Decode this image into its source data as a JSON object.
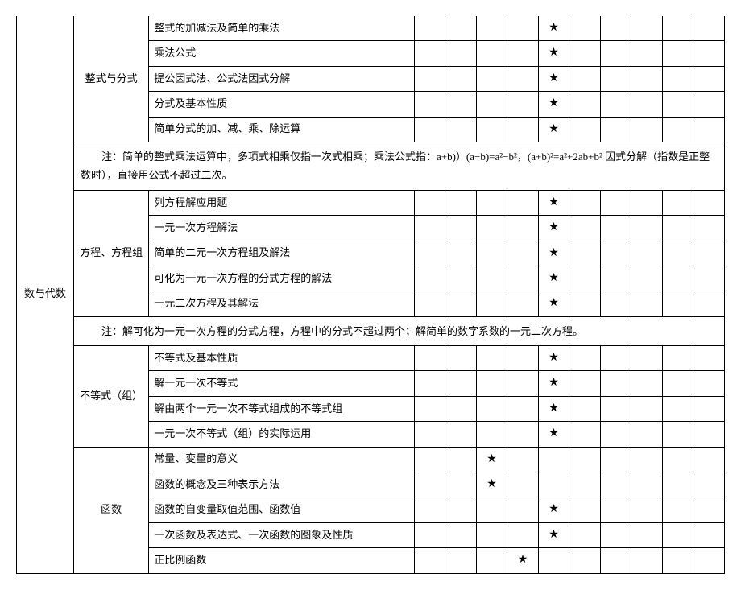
{
  "star": "★",
  "main_category": "数与代数",
  "sections": [
    {
      "sub": "整式与分式",
      "rows": [
        {
          "topic": "整式的加减法及简单的乘法",
          "star_col": 5
        },
        {
          "topic": "乘法公式",
          "star_col": 5
        },
        {
          "topic": "提公因式法、公式法因式分解",
          "star_col": 5
        },
        {
          "topic": "分式及基本性质",
          "star_col": 5
        },
        {
          "topic": "简单分式的加、减、乘、除运算",
          "star_col": 5
        }
      ],
      "note": "注：简单的整式乘法运算中，多项式相乘仅指一次式相乘；乘法公式指：a+b)）(a−b)=a²−b²，(a+b)²=a²+2ab+b² 因式分解（指数是正整数时），直接用公式不超过二次。"
    },
    {
      "sub": "方程、方程组",
      "rows": [
        {
          "topic": "列方程解应用题",
          "star_col": 5
        },
        {
          "topic": "一元一次方程解法",
          "star_col": 5
        },
        {
          "topic": "简单的二元一次方程组及解法",
          "star_col": 5
        },
        {
          "topic": "可化为一元一次方程的分式方程的解法",
          "star_col": 5
        },
        {
          "topic": "一元二次方程及其解法",
          "star_col": 5
        }
      ],
      "note": "注：解可化为一元一次方程的分式方程，方程中的分式不超过两个；解简单的数字系数的一元二次方程。"
    },
    {
      "sub": "不等式（组）",
      "rows": [
        {
          "topic": "不等式及基本性质",
          "star_col": 5
        },
        {
          "topic": "解一元一次不等式",
          "star_col": 5
        },
        {
          "topic": "解由两个一元一次不等式组成的不等式组",
          "star_col": 5
        },
        {
          "topic": "一元一次不等式（组）的实际运用",
          "star_col": 5
        }
      ]
    },
    {
      "sub": "函数",
      "rows": [
        {
          "topic": "常量、变量的意义",
          "star_col": 3
        },
        {
          "topic": "函数的概念及三种表示方法",
          "star_col": 3
        },
        {
          "topic": "函数的自变量取值范围、函数值",
          "star_col": 5
        },
        {
          "topic": "一次函数及表达式、一次函数的图象及性质",
          "star_col": 5
        },
        {
          "topic": "正比例函数",
          "star_col": 4
        }
      ]
    }
  ]
}
